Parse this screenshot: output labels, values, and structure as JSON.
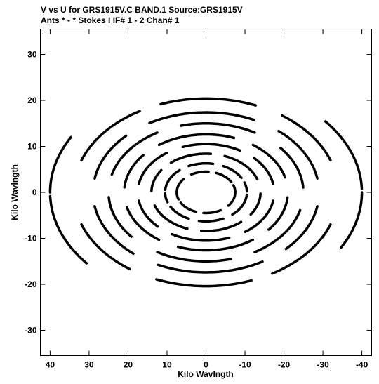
{
  "header": {
    "line1": "V vs U for GRS1915V.C BAND.1   Source:GRS1915V",
    "line2": "Ants * - *    Stokes I  IF# 1 - 2   Chan# 1"
  },
  "chart_data": {
    "type": "scatter",
    "xlabel": "Kilo Wavlngth",
    "ylabel": "Kilo Wavlngth",
    "xlim": [
      42.5,
      -42.5
    ],
    "ylim": [
      -35.5,
      35.5
    ],
    "x_ticks": [
      40,
      30,
      20,
      10,
      0,
      -10,
      -20,
      -30,
      -40
    ],
    "x_tick_labels": [
      "40",
      "30",
      "20",
      "10",
      "0",
      "-10",
      "-20",
      "-30",
      "-40"
    ],
    "y_ticks": [
      30,
      20,
      10,
      0,
      -10,
      -20,
      -30
    ],
    "y_tick_labels": [
      "30",
      "20",
      "10",
      "0",
      "-10",
      "-20",
      "-30"
    ],
    "grid": false,
    "description": "uv-coverage tracks: each track is an elliptical arc; the point-symmetric conjugate track (-u,-v) is also plotted",
    "ellipse_axis_ratio": 0.6,
    "tracks": [
      {
        "r": 7.5,
        "start": 0,
        "end": 40
      },
      {
        "r": 7.5,
        "start": 60,
        "end": 95
      },
      {
        "r": 7.5,
        "start": 110,
        "end": 150
      },
      {
        "r": 7.5,
        "start": 160,
        "end": 178
      },
      {
        "r": 10.5,
        "start": 5,
        "end": 50
      },
      {
        "r": 10.5,
        "start": 65,
        "end": 100
      },
      {
        "r": 10.5,
        "start": 115,
        "end": 150
      },
      {
        "r": 10.5,
        "start": 160,
        "end": 178
      },
      {
        "r": 14,
        "start": 2,
        "end": 35
      },
      {
        "r": 14,
        "start": 50,
        "end": 95
      },
      {
        "r": 14,
        "start": 110,
        "end": 160
      },
      {
        "r": 17.5,
        "start": 10,
        "end": 55
      },
      {
        "r": 17.5,
        "start": 70,
        "end": 120
      },
      {
        "r": 17.5,
        "start": 135,
        "end": 170
      },
      {
        "r": 21,
        "start": 5,
        "end": 40
      },
      {
        "r": 21,
        "start": 55,
        "end": 110
      },
      {
        "r": 21,
        "start": 125,
        "end": 165
      },
      {
        "r": 25,
        "start": 15,
        "end": 60
      },
      {
        "r": 25,
        "start": 75,
        "end": 120
      },
      {
        "r": 25,
        "start": 140,
        "end": 176
      },
      {
        "r": 29,
        "start": 10,
        "end": 45
      },
      {
        "r": 29,
        "start": 60,
        "end": 115
      },
      {
        "r": 29,
        "start": 130,
        "end": 170
      },
      {
        "r": 34,
        "start": 20,
        "end": 60
      },
      {
        "r": 34,
        "start": 70,
        "end": 112
      },
      {
        "r": 34,
        "start": 125,
        "end": 160
      },
      {
        "r": 40,
        "start": 0,
        "end": 30
      },
      {
        "r": 40,
        "start": 140,
        "end": 178
      }
    ]
  }
}
